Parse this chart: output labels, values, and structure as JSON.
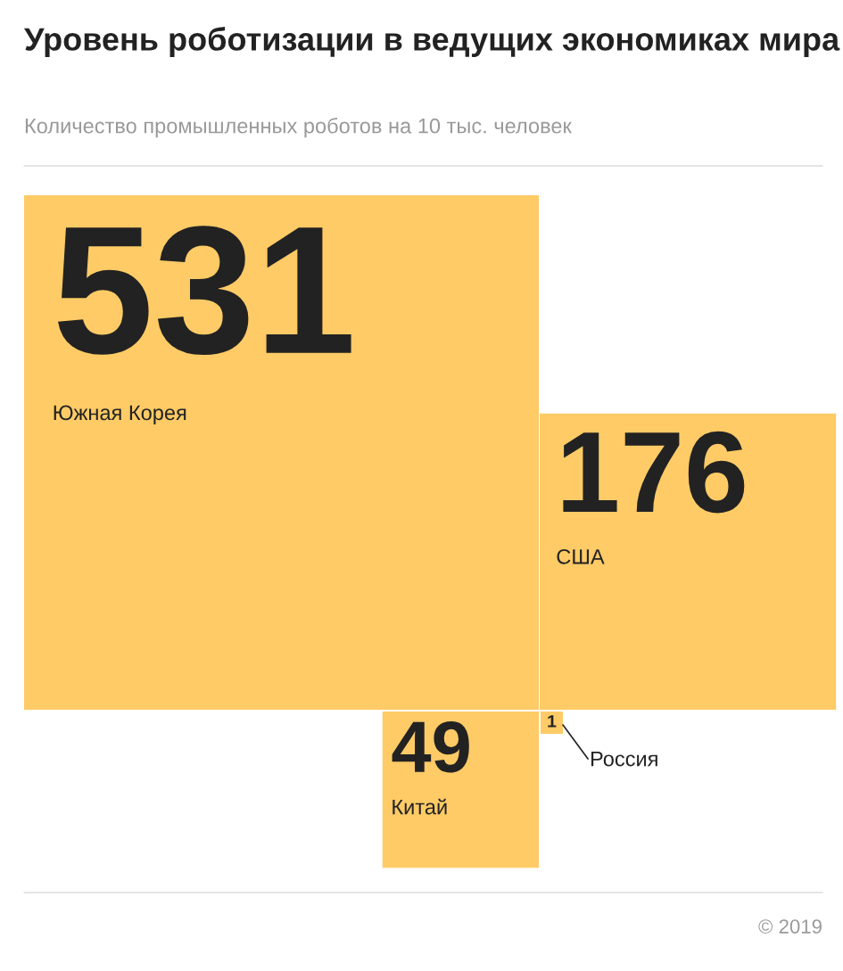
{
  "chart_data": {
    "type": "other",
    "title": "Уровень роботизации в ведущих экономиках мира",
    "subtitle": "Количество промышленных роботов на 10 тыс. человек",
    "categories": [
      "Южная Корея",
      "США",
      "Китай",
      "Россия"
    ],
    "values": [
      531,
      176,
      49,
      1
    ],
    "color": "#fecb66",
    "data_labels": true,
    "annotations": [
      "© 2019"
    ]
  }
}
